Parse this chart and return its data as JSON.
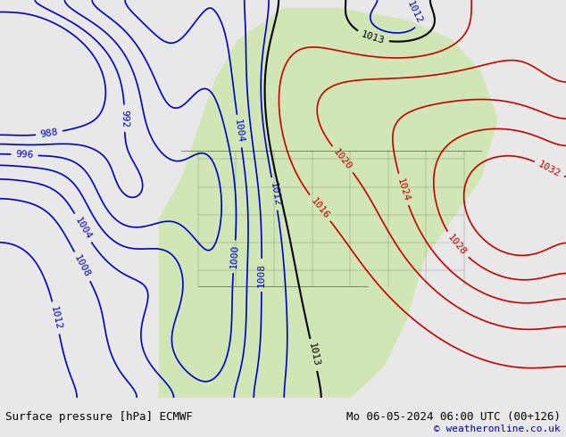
{
  "title_left": "Surface pressure [hPa] ECMWF",
  "title_right": "Mo 06-05-2024 06:00 UTC (00+126)",
  "copyright": "© weatheronline.co.uk",
  "bg_color": "#e8e8e8",
  "land_color": "#c8e6a0",
  "ocean_color": "#d8d8d8",
  "contour_levels": [
    988,
    992,
    996,
    1000,
    1004,
    1008,
    1012,
    1013,
    1016,
    1020,
    1024,
    1028,
    1032
  ],
  "low_color": "#0000cc",
  "high_color": "#cc0000",
  "neutral_color": "#000000",
  "bottom_bar_color": "#d0d0d0",
  "bottom_bar_height": 0.09,
  "font_size_label": 8,
  "font_size_title": 9,
  "font_size_copyright": 8
}
